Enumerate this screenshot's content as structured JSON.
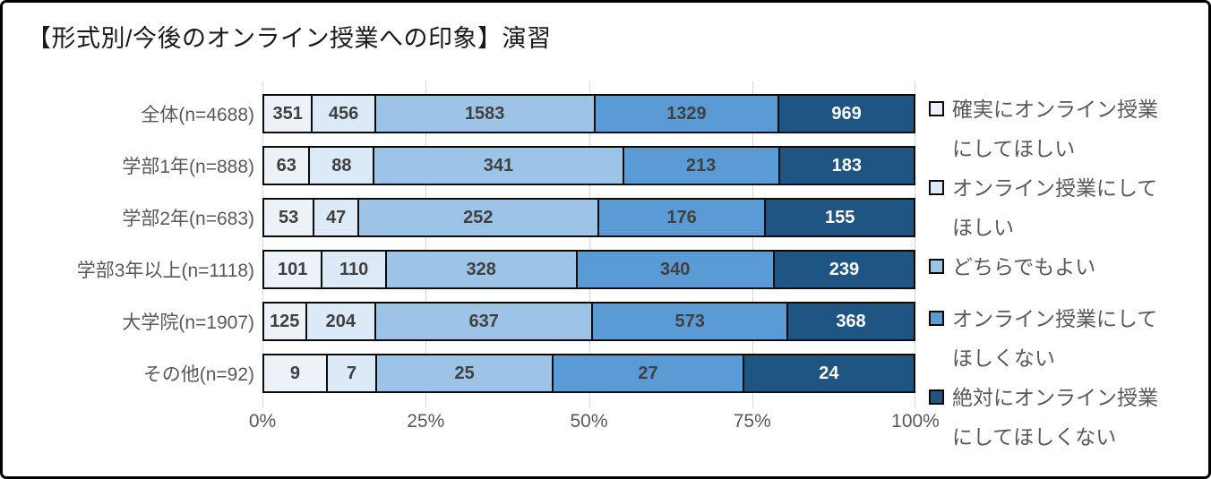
{
  "chart_data": {
    "type": "bar",
    "orientation": "horizontal",
    "stacking": "100%",
    "title": "【形式別/今後のオンライン授業への印象】演習",
    "categories": [
      "全体(n=4688)",
      "学部1年(n=888)",
      "学部2年(n=683)",
      "学部3年以上(n=1118)",
      "大学院(n=1907)",
      "その他(n=92)"
    ],
    "series": [
      {
        "name": "確実にオンライン授業にしてほしい",
        "color": "#edf2f8",
        "text_color": "#404040",
        "values": [
          351,
          63,
          53,
          101,
          125,
          9
        ]
      },
      {
        "name": "オンライン授業にしてほしい",
        "color": "#dce9f6",
        "text_color": "#404040",
        "values": [
          456,
          88,
          47,
          110,
          204,
          7
        ]
      },
      {
        "name": "どちらでもよい",
        "color": "#9dc3e6",
        "text_color": "#404040",
        "values": [
          1583,
          341,
          252,
          328,
          637,
          25
        ]
      },
      {
        "name": "オンライン授業にしてほしくない",
        "color": "#5b9bd5",
        "text_color": "#404040",
        "values": [
          1329,
          213,
          176,
          340,
          573,
          27
        ]
      },
      {
        "name": "絶対にオンライン授業にしてほしくない",
        "color": "#1f5582",
        "text_color": "#ffffff",
        "values": [
          969,
          183,
          155,
          239,
          368,
          24
        ]
      }
    ],
    "x_ticks": [
      "0%",
      "25%",
      "50%",
      "75%",
      "100%"
    ],
    "xlim": [
      0,
      100
    ],
    "grid": true,
    "legend_position": "right"
  },
  "styles": {
    "background": "#ffffff",
    "frame_border": "#000000",
    "title_text": "#1a1a1a",
    "category_text": "#595959",
    "axis_text": "#595959",
    "legend_text": "#595959",
    "gridline": "#d6d6d6",
    "segment_border": "#0b0b0b"
  }
}
